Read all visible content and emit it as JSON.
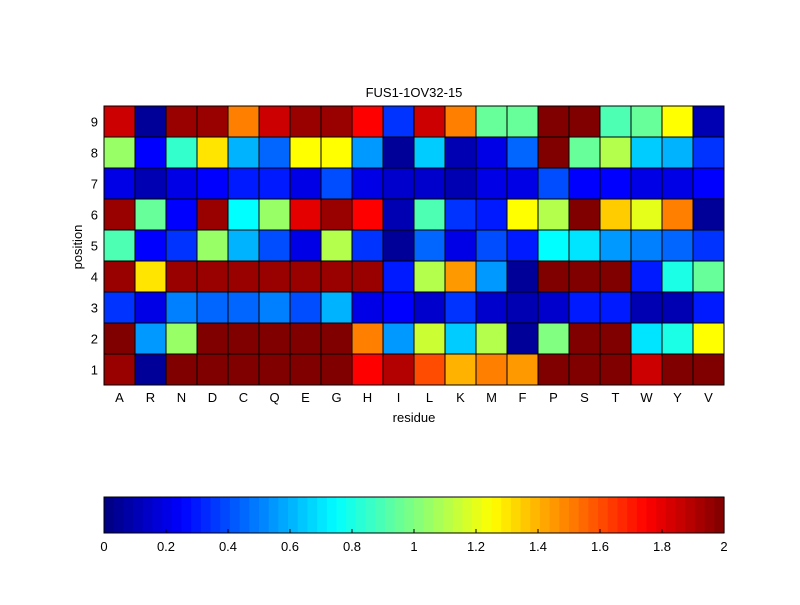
{
  "chart_data": {
    "type": "heatmap",
    "title": "FUS1-1OV32-15",
    "xlabel": "residue",
    "ylabel": "position",
    "x_categories": [
      "A",
      "R",
      "N",
      "D",
      "C",
      "Q",
      "E",
      "G",
      "H",
      "I",
      "L",
      "K",
      "M",
      "F",
      "P",
      "S",
      "T",
      "W",
      "Y",
      "V"
    ],
    "y_categories": [
      "1",
      "2",
      "3",
      "4",
      "5",
      "6",
      "7",
      "8",
      "9"
    ],
    "values": [
      [
        1.95,
        0.05,
        2.0,
        2.0,
        2.0,
        2.0,
        2.0,
        2.0,
        1.75,
        1.9,
        1.6,
        1.4,
        1.5,
        1.45,
        2.0,
        2.0,
        2.0,
        1.85,
        2.0,
        2.0
      ],
      [
        2.0,
        0.55,
        1.05,
        2.0,
        2.0,
        2.0,
        2.0,
        2.0,
        1.5,
        0.55,
        1.15,
        0.65,
        1.1,
        0.05,
        1.0,
        2.0,
        2.0,
        0.7,
        0.8,
        1.25
      ],
      [
        0.35,
        0.2,
        0.5,
        0.45,
        0.45,
        0.5,
        0.4,
        0.6,
        0.2,
        0.25,
        0.15,
        0.35,
        0.15,
        0.1,
        0.15,
        0.3,
        0.3,
        0.1,
        0.1,
        0.3
      ],
      [
        1.95,
        1.3,
        1.95,
        1.95,
        1.95,
        1.95,
        1.95,
        1.95,
        1.95,
        0.3,
        1.1,
        1.45,
        0.55,
        0.05,
        2.0,
        2.0,
        2.0,
        0.3,
        0.8,
        0.95
      ],
      [
        0.9,
        0.25,
        0.35,
        1.05,
        0.6,
        0.4,
        0.2,
        1.1,
        0.35,
        0.05,
        0.45,
        0.2,
        0.4,
        0.3,
        0.75,
        0.7,
        0.55,
        0.5,
        0.45,
        0.35
      ],
      [
        1.95,
        0.95,
        0.25,
        1.95,
        0.75,
        1.05,
        1.8,
        1.95,
        1.75,
        0.1,
        0.9,
        0.35,
        0.3,
        1.25,
        1.1,
        2.0,
        1.35,
        1.2,
        1.5,
        0.05
      ],
      [
        0.2,
        0.1,
        0.2,
        0.25,
        0.3,
        0.3,
        0.2,
        0.4,
        0.2,
        0.15,
        0.15,
        0.1,
        0.2,
        0.2,
        0.4,
        0.25,
        0.25,
        0.2,
        0.2,
        0.25
      ],
      [
        1.05,
        0.25,
        0.85,
        1.3,
        0.6,
        0.45,
        1.25,
        1.25,
        0.55,
        0.05,
        0.65,
        0.1,
        0.2,
        0.45,
        2.0,
        0.95,
        1.1,
        0.65,
        0.6,
        0.35
      ],
      [
        1.85,
        0.05,
        1.95,
        1.95,
        1.5,
        1.85,
        1.95,
        1.95,
        1.75,
        0.35,
        1.85,
        1.5,
        0.95,
        0.95,
        2.0,
        2.0,
        0.9,
        0.95,
        1.25,
        0.1
      ]
    ],
    "colorbar": {
      "range": [
        0,
        2
      ],
      "ticks": [
        "0",
        "0.2",
        "0.4",
        "0.6",
        "0.8",
        "1",
        "1.2",
        "1.4",
        "1.6",
        "1.8",
        "2"
      ]
    },
    "colormap": "jet"
  }
}
